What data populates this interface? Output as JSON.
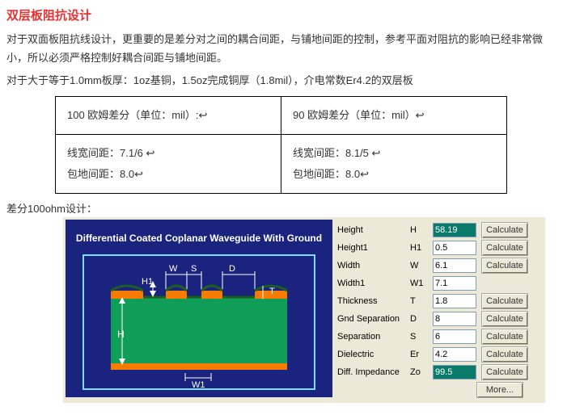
{
  "title": "双层板阻抗设计",
  "para1": "对于双面板阻抗线设计，更重要的是差分对之间的耦合间距，与铺地间距的控制，参考平面对阻抗的影响已经非常微小，所以必须严格控制好耦合间距与铺地间距。",
  "para2": "对于大于等于1.0mm板厚：1oz基铜，1.5oz完成铜厚（1.8mil），介电常数Er4.2的双层板",
  "table": {
    "r1c1": "100 欧姆差分（单位：mil）:↩",
    "r1c2": "90 欧姆差分（单位：mil）↩",
    "r2c1a": "线宽间距：7.1/6 ↩",
    "r2c1b": "包地间距：8.0↩",
    "r2c2a": "线宽间距：8.1/5 ↩",
    "r2c2b": "包地间距：8.0↩"
  },
  "caption": "差分100ohm设计：",
  "diagram": {
    "title": "Differential Coated Coplanar Waveguide With Ground",
    "bg": "#1a237e",
    "substrate": "#0f9d58",
    "copper": "#f57c00",
    "mask": "#1b5e20",
    "label_color": "#ffffff"
  },
  "panel": {
    "calc_label": "Calculate",
    "more_label": "More...",
    "rows": [
      {
        "label": "Height",
        "sym": "H",
        "val": "58.19",
        "hl": true,
        "btn": true
      },
      {
        "label": "Height1",
        "sym": "H1",
        "val": "0.5",
        "hl": false,
        "btn": true
      },
      {
        "label": "Width",
        "sym": "W",
        "val": "6.1",
        "hl": false,
        "btn": true
      },
      {
        "label": "Width1",
        "sym": "W1",
        "val": "7.1",
        "hl": false,
        "btn": false
      },
      {
        "label": "Thickness",
        "sym": "T",
        "val": "1.8",
        "hl": false,
        "btn": true
      },
      {
        "label": "Gnd Separation",
        "sym": "D",
        "val": "8",
        "hl": false,
        "btn": true
      },
      {
        "label": "Separation",
        "sym": "S",
        "val": "6",
        "hl": false,
        "btn": true
      },
      {
        "label": "Dielectric",
        "sym": "Er",
        "val": "4.2",
        "hl": false,
        "btn": true
      },
      {
        "label": "Diff. Impedance",
        "sym": "Zo",
        "val": "99.5",
        "hl": true,
        "btn": true
      }
    ]
  }
}
